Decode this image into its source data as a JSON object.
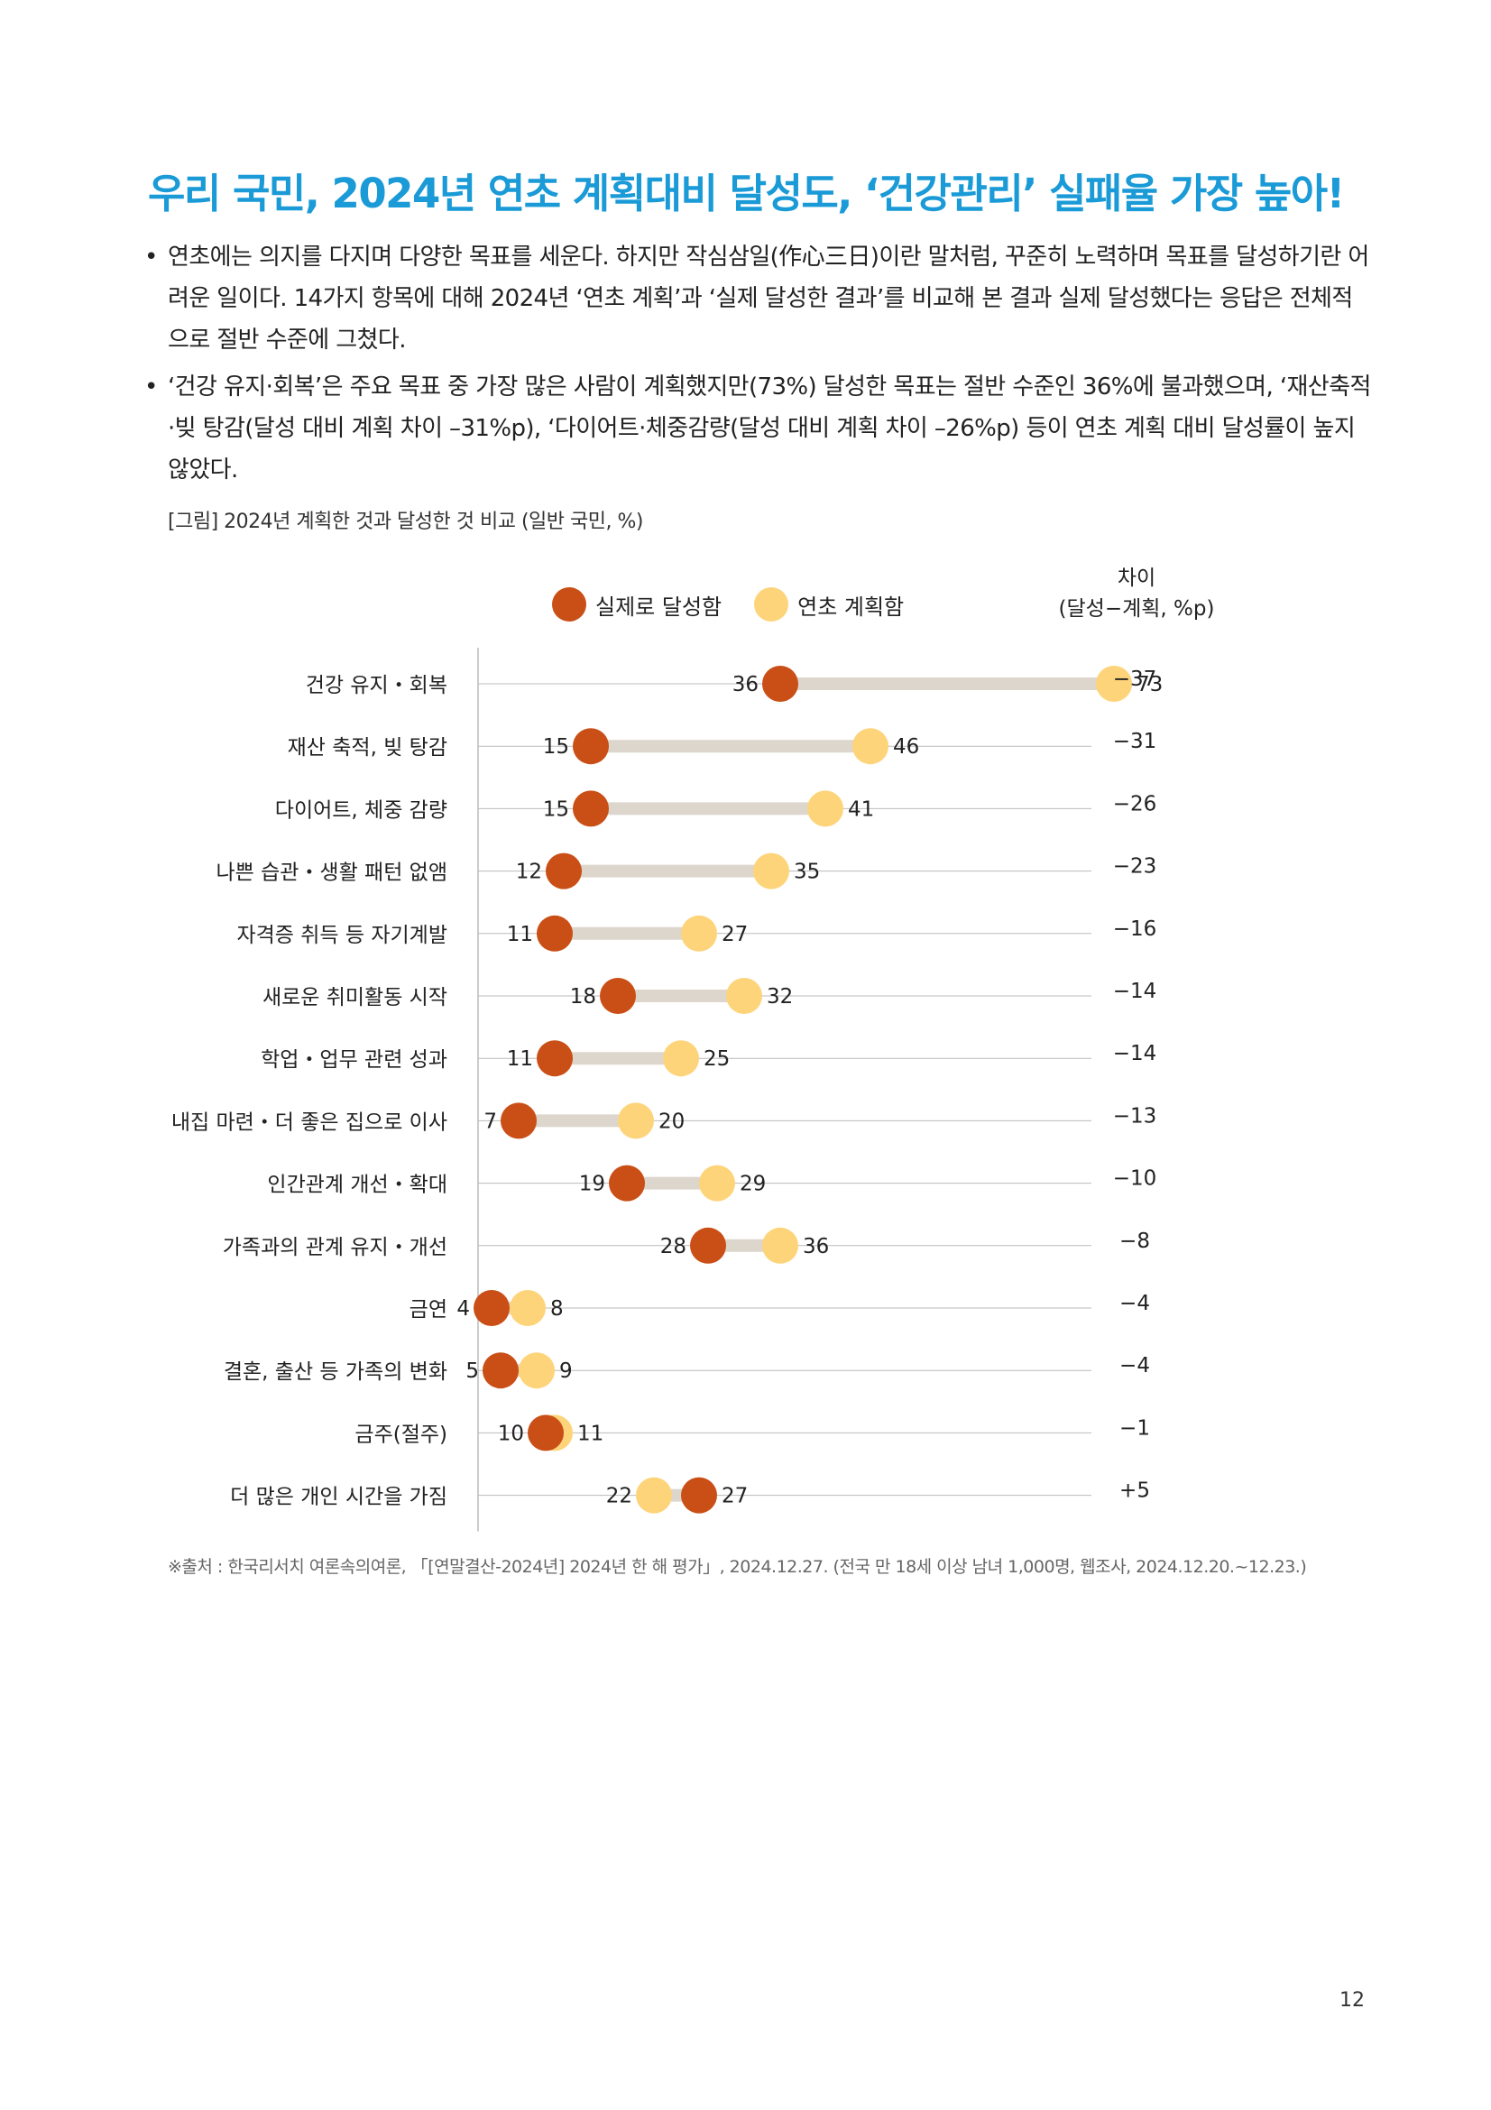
{
  "title": "우리 국민, 2024년 연초 계획대비 달성도, ‘건강관리’ 실패율 가장 높아!",
  "bullets": [
    "연초에는 의지를 다지며 다양한 목표를 세운다. 하지만 작심삼일(作心三日)이란 말처럼, 꾸준히 노력하며 목표를 달성하기란 어려운 일이다. 14가지 항목에 대해 2024년 ‘연초 계획’과 ‘실제 달성한 결과’를 비교해 본 결과 실제 달성했다는 응답은 전체적으로 절반 수준에 그쳤다.",
    "‘건강 유지·회복’은 주요 목표 중 가장 많은 사람이 계획했지만(73%) 달성한 목표는 절반 수준인 36%에 불과했으며, ‘재산축적·빚 탕감(달성 대비 계획 차이 –31%p), ‘다이어트·체중감량(달성 대비 계획 차이 –26%p) 등이 연초 계획 대비 달성률이 높지 않았다."
  ],
  "bullet_symbol": "•",
  "figure_caption": "[그림] 2024년 계획한 것과 달성한 것 비교 (일반 국민, %)",
  "legend": {
    "achieved": "실제로 달성함",
    "planned": "연초 계획함"
  },
  "diff_header": {
    "line1": "차이",
    "line2": "(달성−계획, %p)"
  },
  "colors": {
    "title": "#1a9ad6",
    "achieved": "#c94f16",
    "planned": "#fdd47a",
    "bar": "#ddd6cc",
    "axis": "#bbbbbb"
  },
  "chart_data": {
    "type": "dumbbell",
    "x_range": [
      0,
      80
    ],
    "categories": [
      "건강 유지・회복",
      "재산 축적, 빚 탕감",
      "다이어트, 체중 감량",
      "나쁜 습관・생활 패턴 없앰",
      "자격증 취득 등 자기계발",
      "새로운 취미활동 시작",
      "학업・업무 관련 성과",
      "내집 마련・더 좋은 집으로 이사",
      "인간관계 개선・확대",
      "가족과의 관계 유지・개선",
      "금연",
      "결혼, 출산 등 가족의 변화",
      "금주(절주)",
      "더 많은 개인 시간을 가짐"
    ],
    "series": [
      {
        "name": "실제로 달성함",
        "values": [
          36,
          15,
          15,
          12,
          11,
          18,
          11,
          7,
          19,
          28,
          4,
          5,
          10,
          27
        ]
      },
      {
        "name": "연초 계획함",
        "values": [
          73,
          46,
          41,
          35,
          27,
          32,
          25,
          20,
          29,
          36,
          8,
          9,
          11,
          22
        ]
      }
    ],
    "difference": [
      "−37",
      "−31",
      "−26",
      "−23",
      "−16",
      "−14",
      "−14",
      "−13",
      "−10",
      "−8",
      "−4",
      "−4",
      "−1",
      "+5"
    ]
  },
  "source": "※출처 : 한국리서치 여론속의여론, 「[연말결산-2024년] 2024년 한 해 평가」, 2024.12.27. (전국 만 18세 이상 남녀 1,000명, 웹조사, 2024.12.20.~12.23.)",
  "page_number": "12"
}
